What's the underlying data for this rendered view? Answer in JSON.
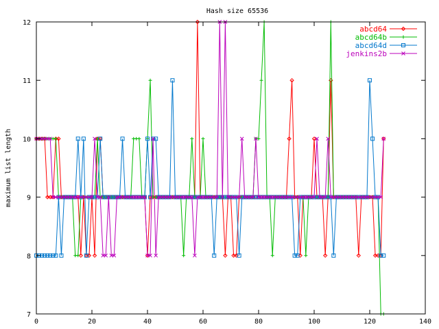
{
  "chart_data": {
    "type": "line",
    "title": "Hash size 65536",
    "xlabel": "",
    "ylabel": "maximum list length",
    "xlim": [
      0,
      140
    ],
    "ylim": [
      7,
      12
    ],
    "xticks": [
      0,
      20,
      40,
      60,
      80,
      100,
      120,
      140
    ],
    "yticks": [
      7,
      8,
      9,
      10,
      11,
      12
    ],
    "grid": false,
    "legend_position": "top-right",
    "series": [
      {
        "name": "abcd64",
        "color": "#ff0000",
        "marker": "diamond",
        "x": [
          0,
          1,
          2,
          3,
          4,
          5,
          6,
          7,
          8,
          9,
          10,
          11,
          12,
          13,
          14,
          15,
          16,
          17,
          18,
          19,
          20,
          21,
          22,
          23,
          24,
          25,
          26,
          27,
          28,
          29,
          30,
          31,
          32,
          33,
          34,
          35,
          36,
          37,
          38,
          39,
          40,
          41,
          42,
          43,
          44,
          45,
          46,
          47,
          48,
          49,
          50,
          51,
          52,
          53,
          54,
          55,
          56,
          57,
          58,
          59,
          60,
          61,
          62,
          63,
          64,
          65,
          66,
          67,
          68,
          69,
          70,
          71,
          72,
          73,
          74,
          75,
          76,
          77,
          78,
          79,
          80,
          81,
          82,
          83,
          84,
          85,
          86,
          87,
          88,
          89,
          90,
          91,
          92,
          93,
          94,
          95,
          96,
          97,
          98,
          99,
          100,
          101,
          102,
          103,
          104,
          105,
          106,
          107,
          108,
          109,
          110,
          111,
          112,
          113,
          114,
          115,
          116,
          117,
          118,
          119,
          120,
          121,
          122,
          123,
          124,
          125
        ],
        "y": [
          10,
          10,
          10,
          10,
          9,
          9,
          9,
          10,
          10,
          9,
          9,
          9,
          9,
          9,
          9,
          9,
          8,
          9,
          8,
          8,
          9,
          8,
          10,
          10,
          9,
          9,
          9,
          9,
          9,
          9,
          9,
          9,
          9,
          9,
          9,
          9,
          9,
          9,
          9,
          9,
          8,
          9,
          9,
          9,
          9,
          9,
          9,
          9,
          9,
          9,
          9,
          9,
          9,
          9,
          9,
          9,
          9,
          9,
          12,
          9,
          9,
          9,
          9,
          9,
          9,
          9,
          9,
          9,
          8,
          9,
          9,
          8,
          8,
          9,
          9,
          9,
          9,
          9,
          9,
          9,
          9,
          9,
          9,
          9,
          9,
          9,
          9,
          9,
          9,
          9,
          9,
          10,
          11,
          9,
          9,
          8,
          9,
          9,
          9,
          9,
          10,
          9,
          9,
          9,
          8,
          9,
          11,
          9,
          9,
          9,
          9,
          9,
          9,
          9,
          9,
          9,
          8,
          9,
          9,
          9,
          9,
          9,
          8,
          8,
          8,
          10
        ]
      },
      {
        "name": "abcd64b",
        "color": "#00bb00",
        "marker": "plus",
        "x": [
          0,
          1,
          2,
          3,
          4,
          5,
          6,
          7,
          8,
          9,
          10,
          11,
          12,
          13,
          14,
          15,
          16,
          17,
          18,
          19,
          20,
          21,
          22,
          23,
          24,
          25,
          26,
          27,
          28,
          29,
          30,
          31,
          32,
          33,
          34,
          35,
          36,
          37,
          38,
          39,
          40,
          41,
          42,
          43,
          44,
          45,
          46,
          47,
          48,
          49,
          50,
          51,
          52,
          53,
          54,
          55,
          56,
          57,
          58,
          59,
          60,
          61,
          62,
          63,
          64,
          65,
          66,
          67,
          68,
          69,
          70,
          71,
          72,
          73,
          74,
          75,
          76,
          77,
          78,
          79,
          80,
          81,
          82,
          83,
          84,
          85,
          86,
          87,
          88,
          89,
          90,
          91,
          92,
          93,
          94,
          95,
          96,
          97,
          98,
          99,
          100,
          101,
          102,
          103,
          104,
          105,
          106,
          107,
          108,
          109,
          110,
          111,
          112,
          113,
          114,
          115,
          116,
          117,
          118,
          119,
          120,
          121,
          122,
          123,
          124,
          125
        ],
        "y": [
          10,
          10,
          10,
          10,
          10,
          10,
          10,
          10,
          9,
          9,
          9,
          9,
          9,
          9,
          8,
          8,
          9,
          9,
          9,
          9,
          9,
          9,
          10,
          9,
          9,
          9,
          9,
          9,
          9,
          9,
          9,
          9,
          9,
          9,
          9,
          10,
          10,
          10,
          9,
          9,
          10,
          11,
          9,
          9,
          9,
          9,
          9,
          9,
          9,
          9,
          9,
          9,
          9,
          8,
          9,
          9,
          10,
          9,
          9,
          9,
          10,
          9,
          9,
          9,
          9,
          9,
          9,
          9,
          9,
          9,
          9,
          9,
          9,
          9,
          9,
          9,
          9,
          9,
          9,
          10,
          10,
          11,
          12,
          9,
          9,
          8,
          9,
          9,
          9,
          9,
          9,
          9,
          9,
          9,
          9,
          9,
          9,
          8,
          9,
          9,
          9,
          9,
          9,
          9,
          9,
          9,
          12,
          9,
          9,
          9,
          9,
          9,
          9,
          9,
          9,
          9,
          9,
          9,
          9,
          9,
          9,
          9,
          9,
          9,
          7,
          7
        ]
      },
      {
        "name": "abcd64d",
        "color": "#0077cc",
        "marker": "square",
        "x": [
          0,
          1,
          2,
          3,
          4,
          5,
          6,
          7,
          8,
          9,
          10,
          11,
          12,
          13,
          14,
          15,
          16,
          17,
          18,
          19,
          20,
          21,
          22,
          23,
          24,
          25,
          26,
          27,
          28,
          29,
          30,
          31,
          32,
          33,
          34,
          35,
          36,
          37,
          38,
          39,
          40,
          41,
          42,
          43,
          44,
          45,
          46,
          47,
          48,
          49,
          50,
          51,
          52,
          53,
          54,
          55,
          56,
          57,
          58,
          59,
          60,
          61,
          62,
          63,
          64,
          65,
          66,
          67,
          68,
          69,
          70,
          71,
          72,
          73,
          74,
          75,
          76,
          77,
          78,
          79,
          80,
          81,
          82,
          83,
          84,
          85,
          86,
          87,
          88,
          89,
          90,
          91,
          92,
          93,
          94,
          95,
          96,
          97,
          98,
          99,
          100,
          101,
          102,
          103,
          104,
          105,
          106,
          107,
          108,
          109,
          110,
          111,
          112,
          113,
          114,
          115,
          116,
          117,
          118,
          119,
          120,
          121,
          122,
          123,
          124,
          125
        ],
        "y": [
          8,
          8,
          8,
          8,
          8,
          8,
          8,
          8,
          9,
          8,
          9,
          9,
          9,
          9,
          9,
          10,
          9,
          10,
          8,
          9,
          9,
          9,
          9,
          10,
          9,
          9,
          9,
          9,
          9,
          9,
          9,
          10,
          9,
          9,
          9,
          9,
          9,
          9,
          9,
          9,
          10,
          9,
          10,
          10,
          9,
          9,
          9,
          9,
          9,
          11,
          9,
          9,
          9,
          9,
          9,
          9,
          9,
          9,
          9,
          9,
          9,
          9,
          9,
          9,
          8,
          9,
          9,
          9,
          9,
          9,
          9,
          9,
          9,
          8,
          9,
          9,
          9,
          9,
          9,
          9,
          9,
          9,
          9,
          9,
          9,
          9,
          9,
          9,
          9,
          9,
          9,
          9,
          9,
          8,
          8,
          9,
          9,
          9,
          9,
          9,
          9,
          9,
          9,
          9,
          9,
          9,
          9,
          8,
          9,
          9,
          9,
          9,
          9,
          9,
          9,
          9,
          9,
          9,
          9,
          9,
          11,
          10,
          9,
          9,
          8,
          8
        ]
      },
      {
        "name": "jenkins2b",
        "color": "#bb00bb",
        "marker": "cross",
        "x": [
          0,
          1,
          2,
          3,
          4,
          5,
          6,
          7,
          8,
          9,
          10,
          11,
          12,
          13,
          14,
          15,
          16,
          17,
          18,
          19,
          20,
          21,
          22,
          23,
          24,
          25,
          26,
          27,
          28,
          29,
          30,
          31,
          32,
          33,
          34,
          35,
          36,
          37,
          38,
          39,
          40,
          41,
          42,
          43,
          44,
          45,
          46,
          47,
          48,
          49,
          50,
          51,
          52,
          53,
          54,
          55,
          56,
          57,
          58,
          59,
          60,
          61,
          62,
          63,
          64,
          65,
          66,
          67,
          68,
          69,
          70,
          71,
          72,
          73,
          74,
          75,
          76,
          77,
          78,
          79,
          80,
          81,
          82,
          83,
          84,
          85,
          86,
          87,
          88,
          89,
          90,
          91,
          92,
          93,
          94,
          95,
          96,
          97,
          98,
          99,
          100,
          101,
          102,
          103,
          104,
          105,
          106,
          107,
          108,
          109,
          110,
          111,
          112,
          113,
          114,
          115,
          116,
          117,
          118,
          119,
          120,
          121,
          122,
          123,
          124,
          125
        ],
        "y": [
          10,
          10,
          10,
          10,
          10,
          10,
          9,
          9,
          9,
          9,
          9,
          9,
          9,
          9,
          9,
          9,
          9,
          9,
          9,
          9,
          9,
          10,
          9,
          9,
          8,
          8,
          9,
          8,
          8,
          9,
          9,
          9,
          9,
          9,
          9,
          9,
          9,
          9,
          9,
          9,
          8,
          8,
          10,
          8,
          9,
          9,
          9,
          9,
          9,
          9,
          9,
          9,
          9,
          9,
          9,
          9,
          9,
          8,
          9,
          9,
          9,
          9,
          9,
          9,
          9,
          9,
          12,
          9,
          12,
          9,
          9,
          9,
          9,
          9,
          10,
          9,
          9,
          9,
          9,
          10,
          9,
          9,
          9,
          9,
          9,
          9,
          9,
          9,
          9,
          9,
          9,
          9,
          9,
          9,
          9,
          9,
          9,
          9,
          9,
          9,
          9,
          10,
          9,
          9,
          9,
          10,
          9,
          9,
          9,
          9,
          9,
          9,
          9,
          9,
          9,
          9,
          9,
          9,
          9,
          9,
          9,
          9,
          9,
          9,
          9,
          10
        ]
      }
    ]
  }
}
